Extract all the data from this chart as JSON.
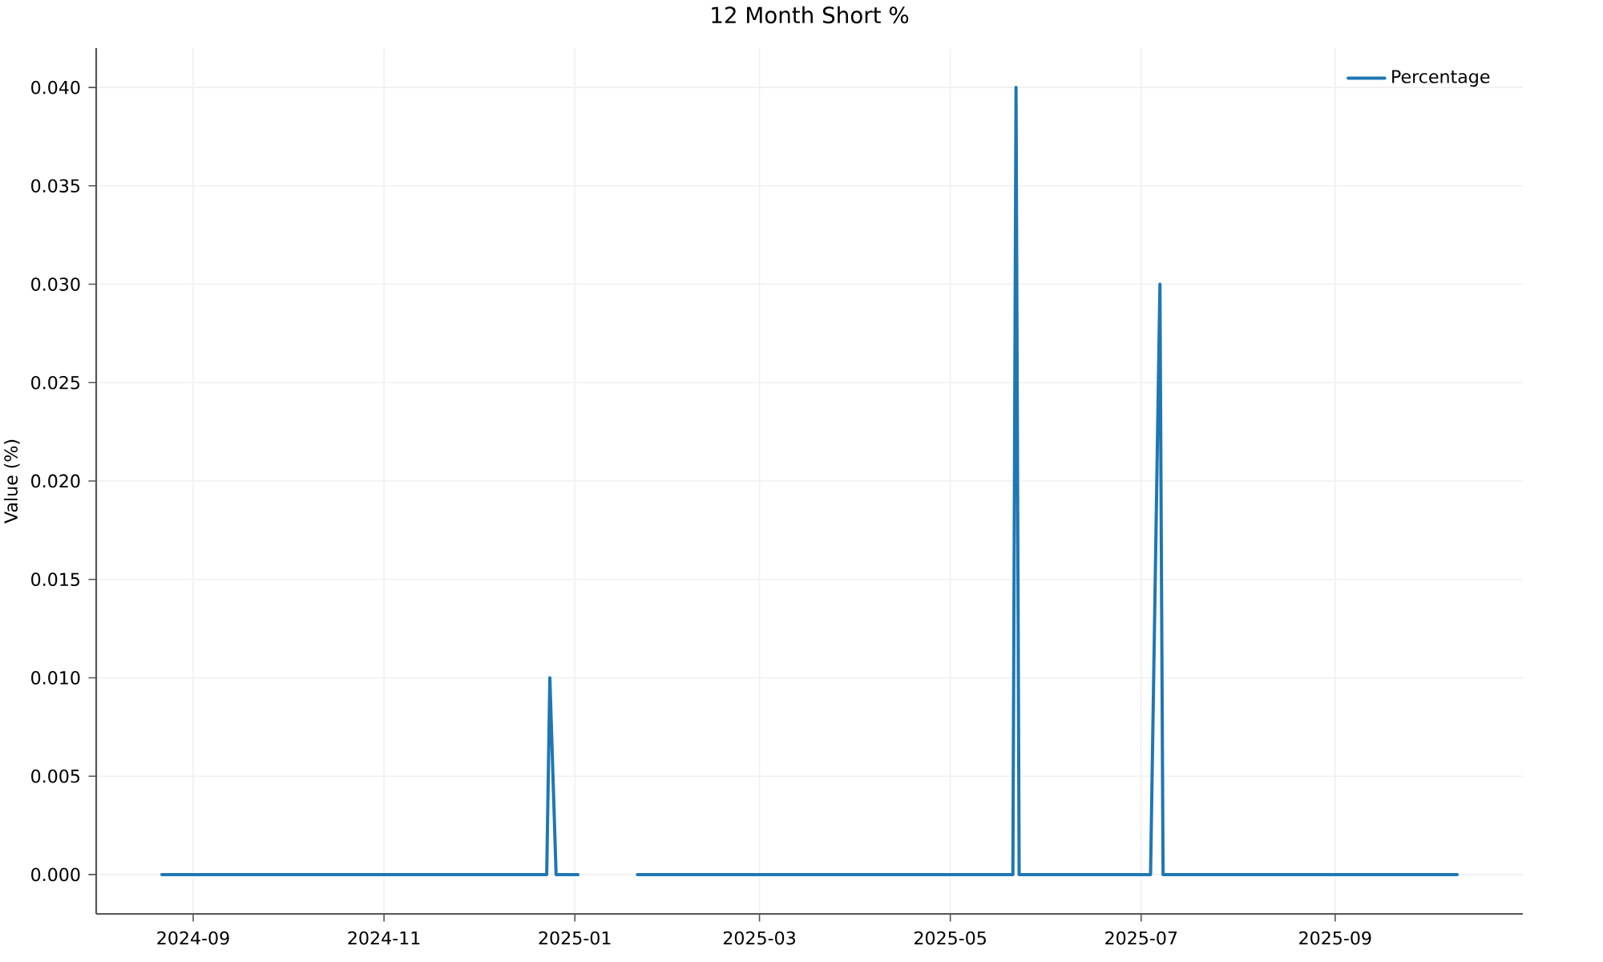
{
  "chart_data": {
    "type": "line",
    "title": "12 Month Short %",
    "ylabel": "Value (%)",
    "x": [
      "2024-08-22",
      "2024-12-23",
      "2024-12-24",
      "2024-12-26",
      "2025-01-02",
      "2025-01-10",
      "2025-01-21",
      "2025-05-21",
      "2025-05-22",
      "2025-05-23",
      "2025-07-04",
      "2025-07-07",
      "2025-07-08",
      "2025-10-10"
    ],
    "series": [
      {
        "name": "Percentage",
        "color": "#1f77b4",
        "values": [
          0,
          0,
          0.01,
          0,
          0,
          null,
          0,
          0,
          0.04,
          0,
          0,
          0.03,
          0,
          0
        ]
      }
    ],
    "xlim": [
      "2024-08-01",
      "2025-10-31"
    ],
    "ylim": [
      -0.002,
      0.042
    ],
    "xticks": [
      "2024-09",
      "2024-11",
      "2025-01",
      "2025-03",
      "2025-05",
      "2025-07",
      "2025-09"
    ],
    "yticks": [
      {
        "value": 0,
        "label": "0.000"
      },
      {
        "value": 0.005,
        "label": "0.005"
      },
      {
        "value": 0.01,
        "label": "0.010"
      },
      {
        "value": 0.015,
        "label": "0.015"
      },
      {
        "value": 0.02,
        "label": "0.020"
      },
      {
        "value": 0.025,
        "label": "0.025"
      },
      {
        "value": 0.03,
        "label": "0.030"
      },
      {
        "value": 0.035,
        "label": "0.035"
      },
      {
        "value": 0.04,
        "label": "0.040"
      }
    ],
    "grid": true,
    "legend": "top right"
  }
}
